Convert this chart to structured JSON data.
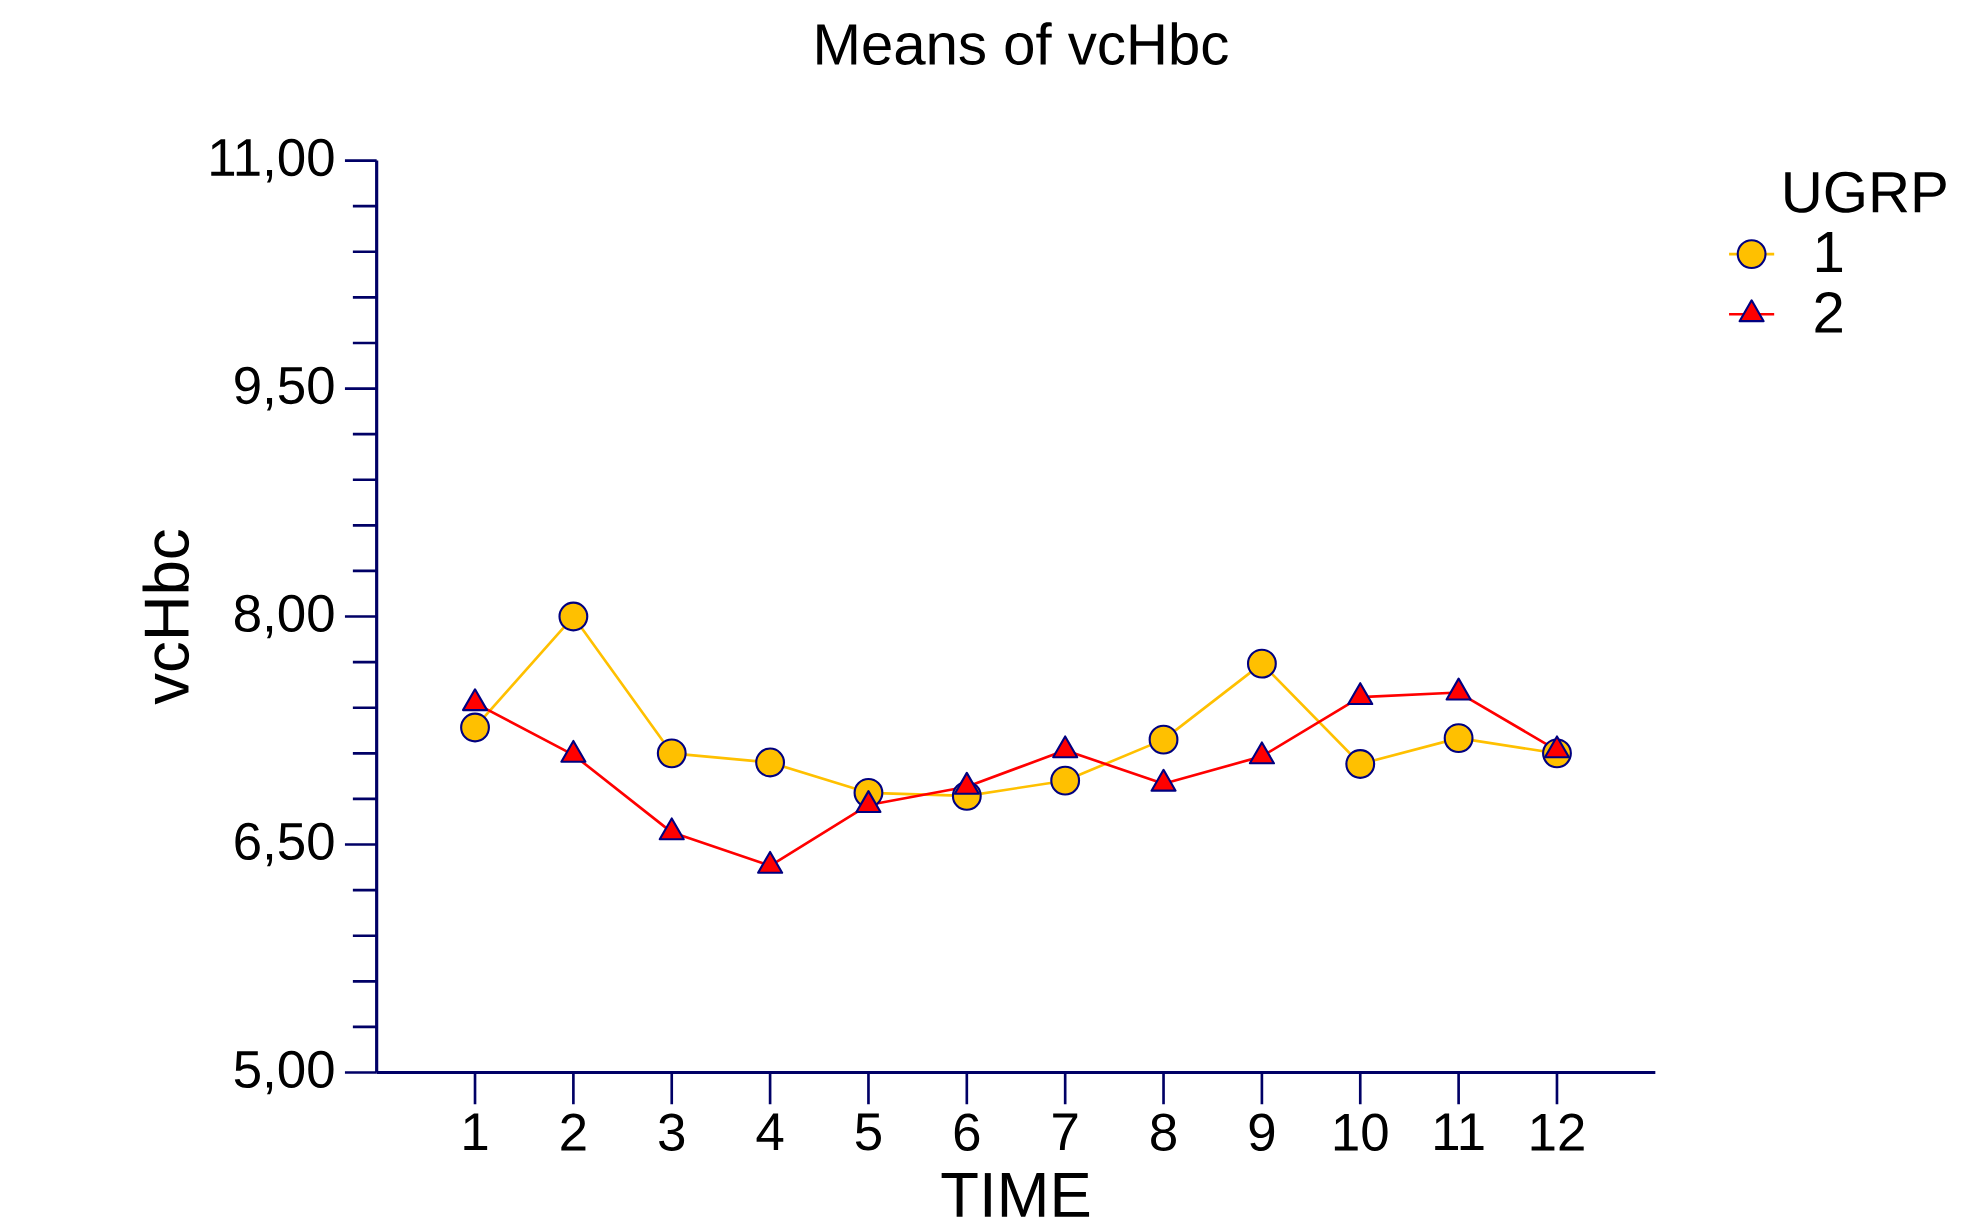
{
  "chart_data": {
    "type": "line",
    "title": "Means of vcHbc",
    "xlabel": "TIME",
    "ylabel": "vcHbc",
    "legend_title": "UGRP",
    "categories": [
      "1",
      "2",
      "3",
      "4",
      "5",
      "6",
      "7",
      "8",
      "9",
      "10",
      "11",
      "12"
    ],
    "ylim": [
      5,
      11
    ],
    "yticks": [
      {
        "value": 5,
        "label": "5,00"
      },
      {
        "value": 6.5,
        "label": "6,50"
      },
      {
        "value": 8,
        "label": "8,00"
      },
      {
        "value": 9.5,
        "label": "9,50"
      },
      {
        "value": 11,
        "label": "11,00"
      }
    ],
    "series": [
      {
        "name": "1",
        "color": "#ffc000",
        "marker": "circle",
        "values": [
          7.27,
          8.0,
          7.1,
          7.04,
          6.84,
          6.82,
          6.92,
          7.19,
          7.69,
          7.03,
          7.2,
          7.1
        ]
      },
      {
        "name": "2",
        "color": "#ff0000",
        "marker": "triangle",
        "values": [
          7.43,
          7.09,
          6.58,
          6.36,
          6.76,
          6.88,
          7.12,
          6.9,
          7.08,
          7.47,
          7.5,
          7.12
        ]
      }
    ],
    "legend": "top right",
    "grid": false
  }
}
